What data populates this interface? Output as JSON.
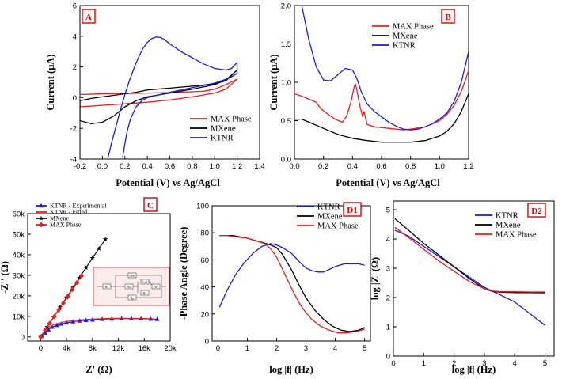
{
  "figure_labels": {
    "x_shared_ab": "Potential (V) vs Ag/AgCl"
  },
  "colors": {
    "max": "#ee1c1c",
    "mxene": "#000000",
    "ktnr": "#1c1cdd",
    "label_border": "#e00000",
    "inset_bg": "#fdecec"
  },
  "chart_data": [
    {
      "id": "A",
      "type": "line",
      "panel_label": "A",
      "xlabel": "Potential (V) vs Ag/AgCl",
      "ylabel": "Current (µA)",
      "xlim": [
        -0.2,
        1.4
      ],
      "ylim": [
        -4,
        6
      ],
      "xticks": [
        "-0.2",
        "0.0",
        "0.2",
        "0.4",
        "0.6",
        "0.8",
        "1.0",
        "1.2",
        "1.4"
      ],
      "yticks": [
        "-4",
        "-2",
        "0",
        "2",
        "4",
        "6"
      ],
      "legend": [
        "MAX Phase",
        "MXene",
        "KTNR"
      ],
      "series": [
        {
          "name": "MAX Phase",
          "color": "max",
          "closed": true,
          "x": [
            1.2,
            1.1,
            1.0,
            0.9,
            0.8,
            0.6,
            0.4,
            0.2,
            0.0,
            -0.2,
            -0.2,
            0.0,
            0.2,
            0.4,
            0.6,
            0.8,
            1.0,
            1.1,
            1.2
          ],
          "y": [
            1.2,
            0.85,
            0.55,
            0.42,
            0.38,
            0.33,
            0.3,
            0.27,
            0.25,
            0.2,
            -0.6,
            -0.5,
            -0.4,
            -0.3,
            -0.15,
            0.05,
            0.3,
            0.55,
            1.2
          ]
        },
        {
          "name": "MXene",
          "color": "mxene",
          "closed": true,
          "x": [
            1.2,
            1.1,
            1.0,
            0.8,
            0.6,
            0.4,
            0.3,
            0.2,
            0.1,
            0.0,
            -0.1,
            -0.2,
            -0.2,
            -0.1,
            0.0,
            0.1,
            0.2,
            0.3,
            0.4,
            0.6,
            0.8,
            1.0,
            1.1,
            1.2
          ],
          "y": [
            1.8,
            1.1,
            0.9,
            0.75,
            0.62,
            0.5,
            0.35,
            0.25,
            0.15,
            0.05,
            -0.05,
            -0.2,
            -1.5,
            -1.7,
            -1.6,
            -1.2,
            -0.6,
            -0.2,
            0.05,
            0.3,
            0.55,
            0.85,
            1.15,
            1.8
          ]
        },
        {
          "name": "KTNR",
          "color": "ktnr",
          "closed": false,
          "x": [
            0.05,
            0.08,
            0.12,
            0.16,
            0.2,
            0.24,
            0.28,
            0.32,
            0.36,
            0.4,
            0.44,
            0.48,
            0.52,
            0.56,
            0.6,
            0.7,
            0.8,
            0.9,
            1.0,
            1.1,
            1.15,
            1.2,
            1.2,
            1.15,
            1.1,
            1.0,
            0.8,
            0.6,
            0.5,
            0.4,
            0.35,
            0.3,
            0.25,
            0.22,
            0.2,
            0.18
          ],
          "y": [
            -3.9,
            -3.0,
            -1.9,
            -0.8,
            0.2,
            1.1,
            1.9,
            2.6,
            3.2,
            3.6,
            3.85,
            3.95,
            3.92,
            3.75,
            3.5,
            3.0,
            2.6,
            2.2,
            1.9,
            1.8,
            1.9,
            2.3,
            1.6,
            1.35,
            1.2,
            0.95,
            0.65,
            0.35,
            0.18,
            0.0,
            -0.2,
            -0.6,
            -1.4,
            -2.2,
            -3.0,
            -3.9
          ]
        }
      ]
    },
    {
      "id": "B",
      "type": "line",
      "panel_label": "B",
      "xlabel": "Potential (V) vs Ag/AgCl",
      "ylabel": "Current (µA)",
      "xlim": [
        0.0,
        1.2
      ],
      "ylim": [
        0.0,
        2.0
      ],
      "xticks": [
        "0.0",
        "0.2",
        "0.4",
        "0.6",
        "0.8",
        "1.0",
        "1.2"
      ],
      "yticks": [
        "0.0",
        "0.5",
        "1.0",
        "1.5",
        "2.0"
      ],
      "legend": [
        "MAX Phase",
        "MXene",
        "KTNR"
      ],
      "series": [
        {
          "name": "MAX Phase",
          "color": "max",
          "x": [
            0.0,
            0.05,
            0.1,
            0.15,
            0.18,
            0.22,
            0.28,
            0.33,
            0.36,
            0.39,
            0.41,
            0.42,
            0.43,
            0.45,
            0.47,
            0.48,
            0.5,
            0.55,
            0.6,
            0.65,
            0.7,
            0.75,
            0.8,
            0.9,
            1.0,
            1.05,
            1.1,
            1.15,
            1.2
          ],
          "y": [
            0.85,
            0.82,
            0.78,
            0.74,
            0.66,
            0.6,
            0.52,
            0.48,
            0.56,
            0.75,
            0.93,
            0.98,
            0.9,
            0.7,
            0.55,
            0.62,
            0.45,
            0.42,
            0.41,
            0.4,
            0.39,
            0.38,
            0.39,
            0.42,
            0.5,
            0.58,
            0.7,
            0.88,
            1.15
          ]
        },
        {
          "name": "MXene",
          "color": "mxene",
          "x": [
            0.0,
            0.05,
            0.1,
            0.2,
            0.3,
            0.4,
            0.5,
            0.6,
            0.7,
            0.8,
            0.9,
            1.0,
            1.05,
            1.1,
            1.15,
            1.2
          ],
          "y": [
            0.52,
            0.52,
            0.48,
            0.4,
            0.32,
            0.27,
            0.24,
            0.22,
            0.22,
            0.22,
            0.24,
            0.3,
            0.36,
            0.46,
            0.62,
            0.85
          ]
        },
        {
          "name": "KTNR",
          "color": "ktnr",
          "x": [
            0.05,
            0.1,
            0.15,
            0.2,
            0.25,
            0.3,
            0.35,
            0.4,
            0.43,
            0.46,
            0.5,
            0.55,
            0.6,
            0.65,
            0.7,
            0.75,
            0.8,
            0.85,
            0.9,
            0.95,
            1.0,
            1.05,
            1.1,
            1.15,
            1.2
          ],
          "y": [
            2.0,
            1.55,
            1.2,
            1.03,
            1.02,
            1.1,
            1.18,
            1.16,
            1.05,
            0.88,
            0.72,
            0.62,
            0.55,
            0.48,
            0.43,
            0.39,
            0.38,
            0.39,
            0.42,
            0.46,
            0.52,
            0.6,
            0.75,
            1.0,
            1.4
          ]
        }
      ]
    },
    {
      "id": "C",
      "type": "scatter",
      "panel_label": "C",
      "xlabel": "Z' (Ω)",
      "ylabel": "-Z'' (Ω)",
      "xlim": [
        -2000,
        20000
      ],
      "ylim": [
        -2000,
        60000
      ],
      "xticks": [
        "0",
        "4k",
        "8k",
        "12k",
        "16k",
        "20k"
      ],
      "yticks": [
        "0",
        "10k",
        "20k",
        "30k",
        "40k",
        "50k",
        "60k"
      ],
      "legend": [
        "KTNR - Experimental",
        "KTNR - Fitted",
        "MXene",
        "MAX Phase"
      ],
      "series": [
        {
          "name": "KTNR - Experimental",
          "color": "ktnr",
          "marker": "triangle",
          "x": [
            200,
            700,
            1200,
            1800,
            2500,
            3200,
            4000,
            5000,
            6000,
            7000,
            8000,
            9500,
            11000,
            12500,
            14000,
            15500,
            17000,
            18000
          ],
          "y": [
            500,
            2000,
            3500,
            4800,
            5700,
            6300,
            6900,
            7400,
            7800,
            8100,
            8300,
            8600,
            8800,
            8900,
            8900,
            8850,
            8700,
            8600
          ]
        },
        {
          "name": "KTNR - Fitted",
          "color": "max",
          "marker": "none",
          "x": [
            0,
            600,
            1200,
            2000,
            3000,
            4000,
            5000,
            6500,
            8000,
            10000,
            12000,
            14000,
            16000,
            17500
          ],
          "y": [
            0,
            2400,
            4300,
            5900,
            6900,
            7500,
            8000,
            8400,
            8700,
            8950,
            9050,
            9050,
            8950,
            8800
          ]
        },
        {
          "name": "MXene",
          "color": "mxene",
          "marker": "star",
          "x": [
            0,
            1000,
            2000,
            3000,
            4000,
            5000,
            6000,
            7000,
            8000,
            9000,
            10000
          ],
          "y": [
            0,
            4800,
            9600,
            14400,
            19200,
            24000,
            28800,
            33600,
            38400,
            43000,
            47500
          ]
        },
        {
          "name": "MAX Phase",
          "color": "max",
          "marker": "diamond",
          "x": [
            0,
            700,
            1400,
            2100,
            2800,
            3500,
            4200,
            4900,
            5600,
            6300
          ],
          "y": [
            0,
            3300,
            6600,
            9900,
            13200,
            16500,
            19800,
            23100,
            26400,
            29700
          ]
        }
      ],
      "inset": {
        "type": "equivalent-circuit",
        "labels": [
          "Rs",
          "Rct",
          "CPE",
          "W",
          "Cdl",
          "Rf",
          "Rp",
          "C1",
          "C2"
        ]
      }
    },
    {
      "id": "D1",
      "type": "line",
      "panel_label": "D1",
      "xlabel": "log |f| (Hz)",
      "ylabel": "-Phase Angle (Degree)",
      "xlim": [
        -0.2,
        5.2
      ],
      "ylim": [
        0,
        100
      ],
      "xticks": [
        "0",
        "1",
        "2",
        "3",
        "4",
        "5"
      ],
      "yticks": [
        "0",
        "20",
        "40",
        "60",
        "80",
        "100"
      ],
      "legend": [
        "KTNR",
        "MXene",
        "MAX Phase"
      ],
      "series": [
        {
          "name": "KTNR",
          "color": "ktnr",
          "x": [
            0.05,
            0.3,
            0.6,
            0.9,
            1.2,
            1.5,
            1.8,
            2.0,
            2.2,
            2.5,
            2.8,
            3.0,
            3.2,
            3.4,
            3.6,
            3.8,
            4.0,
            4.3,
            4.6,
            4.8,
            5.0
          ],
          "y": [
            25,
            37,
            49,
            58,
            65,
            70,
            72,
            71,
            69,
            65,
            58,
            54,
            52,
            51,
            51,
            53,
            55,
            57,
            57,
            57,
            56
          ]
        },
        {
          "name": "MXene",
          "color": "mxene",
          "x": [
            0.05,
            0.5,
            1.0,
            1.5,
            1.8,
            2.0,
            2.2,
            2.5,
            2.8,
            3.0,
            3.3,
            3.6,
            3.9,
            4.2,
            4.5,
            4.8,
            5.0
          ],
          "y": [
            78,
            78,
            76,
            73,
            71,
            69,
            64,
            53,
            40,
            32,
            23,
            16,
            11,
            8,
            7,
            8,
            10
          ]
        },
        {
          "name": "MAX Phase",
          "color": "max",
          "x": [
            0.05,
            0.3,
            0.6,
            1.0,
            1.3,
            1.6,
            1.8,
            2.0,
            2.2,
            2.4,
            2.6,
            2.8,
            3.0,
            3.2,
            3.5,
            3.8,
            4.1,
            4.4,
            4.7,
            4.9,
            5.0
          ],
          "y": [
            78,
            78,
            77,
            76,
            74,
            72,
            68,
            62,
            53,
            44,
            35,
            27,
            21,
            16,
            11,
            8,
            6,
            6,
            7,
            8,
            9
          ]
        }
      ]
    },
    {
      "id": "D2",
      "type": "line",
      "panel_label": "D2",
      "xlabel": "log |f| (Hz)",
      "ylabel": "log |Z| (Ω)",
      "xlim": [
        0,
        5.3
      ],
      "ylim": [
        0,
        5.3
      ],
      "xticks": [
        "0",
        "1",
        "2",
        "3",
        "4",
        "5"
      ],
      "yticks": [
        "0",
        "1",
        "2",
        "3",
        "4",
        "5"
      ],
      "legend": [
        "KTNR",
        "MXene",
        "MAX Phase"
      ],
      "series": [
        {
          "name": "KTNR",
          "color": "ktnr",
          "x": [
            0.05,
            0.5,
            1.0,
            1.5,
            2.0,
            2.5,
            3.0,
            3.5,
            4.0,
            4.5,
            5.0
          ],
          "y": [
            4.3,
            4.1,
            3.75,
            3.4,
            3.05,
            2.7,
            2.35,
            2.1,
            1.85,
            1.45,
            1.05
          ]
        },
        {
          "name": "MXene",
          "color": "mxene",
          "x": [
            0.05,
            0.5,
            1.0,
            1.5,
            2.0,
            2.5,
            3.0,
            3.3,
            3.6,
            4.0,
            4.5,
            5.0
          ],
          "y": [
            4.7,
            4.3,
            3.85,
            3.45,
            3.05,
            2.65,
            2.3,
            2.2,
            2.18,
            2.17,
            2.17,
            2.16
          ]
        },
        {
          "name": "MAX Phase",
          "color": "max",
          "x": [
            0.05,
            0.5,
            1.0,
            1.5,
            2.0,
            2.5,
            3.0,
            3.3,
            3.6,
            4.0,
            4.5,
            5.0
          ],
          "y": [
            4.4,
            4.05,
            3.65,
            3.25,
            2.9,
            2.55,
            2.3,
            2.22,
            2.2,
            2.2,
            2.19,
            2.19
          ]
        }
      ]
    }
  ]
}
